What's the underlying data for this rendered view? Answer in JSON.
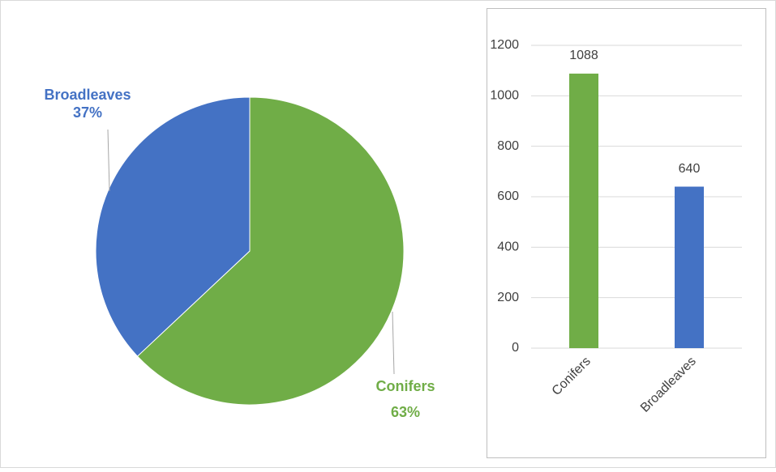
{
  "chart_data": [
    {
      "type": "pie",
      "categories": [
        "Conifers",
        "Broadleaves"
      ],
      "values": [
        63,
        37
      ],
      "value_labels": [
        "63%",
        "37%"
      ],
      "colors": [
        "#70ad47",
        "#4472c4"
      ]
    },
    {
      "type": "bar",
      "categories": [
        "Conifers",
        "Broadleaves"
      ],
      "values": [
        1088,
        640
      ],
      "colors": [
        "#70ad47",
        "#4472c4"
      ],
      "ylim": [
        0,
        1200
      ],
      "yticks": [
        0,
        200,
        400,
        600,
        800,
        1000,
        1200
      ],
      "grid": true
    }
  ]
}
